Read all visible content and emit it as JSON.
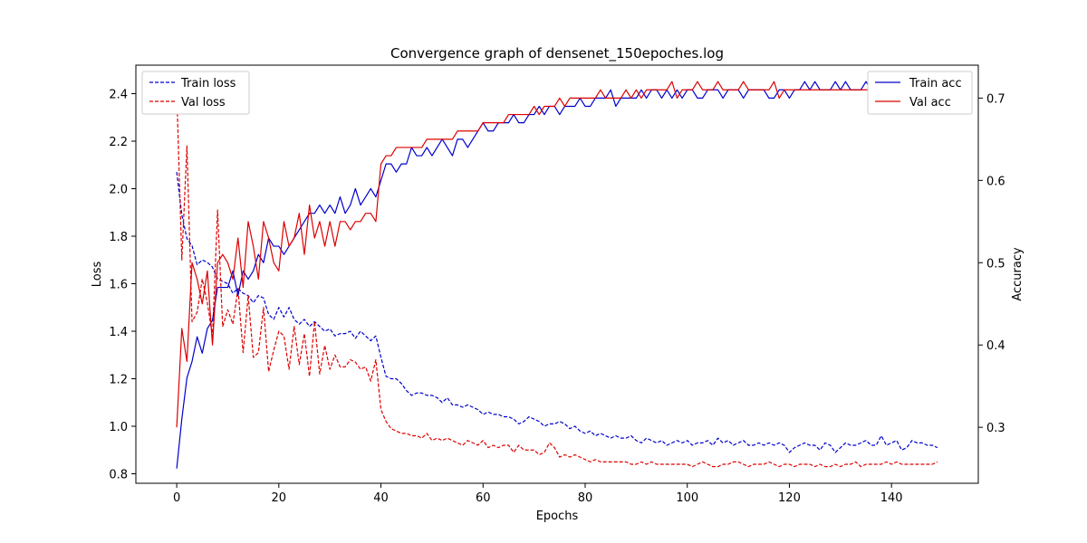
{
  "chart_data": {
    "type": "line",
    "title": "Convergence graph of densenet_150epoches.log",
    "xlabel": "Epochs",
    "ylabel_left": "Loss",
    "ylabel_right": "Accuracy",
    "xlim": [
      -8,
      157
    ],
    "ylim_left": [
      0.76,
      2.52
    ],
    "ylim_right": [
      0.232,
      0.74
    ],
    "xticks": [
      0,
      20,
      40,
      60,
      80,
      100,
      120,
      140
    ],
    "yticks_left": [
      0.8,
      1.0,
      1.2,
      1.4,
      1.6,
      1.8,
      2.0,
      2.2,
      2.4
    ],
    "yticks_right": [
      0.3,
      0.4,
      0.5,
      0.6,
      0.7
    ],
    "legend_left": {
      "placement": "top-left",
      "entries": [
        "Train loss",
        "Val loss"
      ]
    },
    "legend_right": {
      "placement": "top-right",
      "entries": [
        "Train acc",
        "Val acc"
      ]
    },
    "colors": {
      "train": "#0000cc",
      "val": "#dd0000"
    },
    "x": [
      0,
      1,
      2,
      3,
      4,
      5,
      6,
      7,
      8,
      9,
      10,
      11,
      12,
      13,
      14,
      15,
      16,
      17,
      18,
      19,
      20,
      21,
      22,
      23,
      24,
      25,
      26,
      27,
      28,
      29,
      30,
      31,
      32,
      33,
      34,
      35,
      36,
      37,
      38,
      39,
      40,
      41,
      42,
      43,
      44,
      45,
      46,
      47,
      48,
      49,
      50,
      51,
      52,
      53,
      54,
      55,
      56,
      57,
      58,
      59,
      60,
      61,
      62,
      63,
      64,
      65,
      66,
      67,
      68,
      69,
      70,
      71,
      72,
      73,
      74,
      75,
      76,
      77,
      78,
      79,
      80,
      81,
      82,
      83,
      84,
      85,
      86,
      87,
      88,
      89,
      90,
      91,
      92,
      93,
      94,
      95,
      96,
      97,
      98,
      99,
      100,
      101,
      102,
      103,
      104,
      105,
      106,
      107,
      108,
      109,
      110,
      111,
      112,
      113,
      114,
      115,
      116,
      117,
      118,
      119,
      120,
      121,
      122,
      123,
      124,
      125,
      126,
      127,
      128,
      129,
      130,
      131,
      132,
      133,
      134,
      135,
      136,
      137,
      138,
      139,
      140,
      141,
      142,
      143,
      144,
      145,
      146,
      147,
      148,
      149
    ],
    "series": [
      {
        "name": "Train loss",
        "axis": "left",
        "style": "dashed",
        "color": "#0000cc",
        "values": [
          2.07,
          1.89,
          1.79,
          1.76,
          1.68,
          1.7,
          1.69,
          1.67,
          1.62,
          1.61,
          1.6,
          1.56,
          1.58,
          1.56,
          1.55,
          1.52,
          1.55,
          1.54,
          1.47,
          1.45,
          1.5,
          1.46,
          1.5,
          1.45,
          1.43,
          1.45,
          1.42,
          1.44,
          1.42,
          1.4,
          1.41,
          1.38,
          1.39,
          1.39,
          1.4,
          1.37,
          1.4,
          1.38,
          1.36,
          1.38,
          1.29,
          1.21,
          1.2,
          1.2,
          1.18,
          1.15,
          1.13,
          1.14,
          1.14,
          1.13,
          1.13,
          1.12,
          1.1,
          1.12,
          1.09,
          1.09,
          1.08,
          1.09,
          1.08,
          1.07,
          1.05,
          1.06,
          1.05,
          1.05,
          1.04,
          1.04,
          1.03,
          1.01,
          1.02,
          1.04,
          1.03,
          1.02,
          1.0,
          1.01,
          1.01,
          1.02,
          1.01,
          0.99,
          1.0,
          0.98,
          0.97,
          0.98,
          0.96,
          0.97,
          0.96,
          0.95,
          0.96,
          0.95,
          0.95,
          0.96,
          0.94,
          0.93,
          0.95,
          0.94,
          0.93,
          0.94,
          0.92,
          0.93,
          0.94,
          0.93,
          0.94,
          0.92,
          0.93,
          0.93,
          0.94,
          0.92,
          0.95,
          0.93,
          0.94,
          0.92,
          0.93,
          0.94,
          0.92,
          0.92,
          0.93,
          0.92,
          0.93,
          0.92,
          0.93,
          0.92,
          0.89,
          0.91,
          0.92,
          0.93,
          0.92,
          0.92,
          0.9,
          0.93,
          0.92,
          0.89,
          0.91,
          0.93,
          0.92,
          0.92,
          0.93,
          0.94,
          0.92,
          0.92,
          0.96,
          0.92,
          0.93,
          0.94,
          0.9,
          0.91,
          0.94,
          0.93,
          0.93,
          0.92,
          0.92,
          0.91
        ]
      },
      {
        "name": "Val loss",
        "axis": "left",
        "style": "dashed",
        "color": "#dd0000",
        "values": [
          2.41,
          1.7,
          2.18,
          1.44,
          1.48,
          1.62,
          1.52,
          1.38,
          1.91,
          1.42,
          1.49,
          1.43,
          1.58,
          1.31,
          1.55,
          1.29,
          1.31,
          1.5,
          1.23,
          1.32,
          1.4,
          1.38,
          1.24,
          1.42,
          1.26,
          1.39,
          1.21,
          1.44,
          1.22,
          1.34,
          1.24,
          1.3,
          1.25,
          1.25,
          1.28,
          1.27,
          1.24,
          1.25,
          1.19,
          1.28,
          1.07,
          1.02,
          0.99,
          0.98,
          0.97,
          0.97,
          0.96,
          0.96,
          0.95,
          0.97,
          0.94,
          0.95,
          0.94,
          0.95,
          0.94,
          0.93,
          0.92,
          0.94,
          0.93,
          0.92,
          0.94,
          0.91,
          0.92,
          0.91,
          0.92,
          0.92,
          0.89,
          0.92,
          0.9,
          0.9,
          0.9,
          0.88,
          0.89,
          0.93,
          0.91,
          0.87,
          0.88,
          0.87,
          0.88,
          0.87,
          0.86,
          0.85,
          0.86,
          0.85,
          0.85,
          0.85,
          0.85,
          0.85,
          0.85,
          0.84,
          0.84,
          0.85,
          0.84,
          0.85,
          0.84,
          0.84,
          0.84,
          0.84,
          0.84,
          0.84,
          0.84,
          0.83,
          0.84,
          0.85,
          0.84,
          0.83,
          0.83,
          0.84,
          0.84,
          0.85,
          0.85,
          0.84,
          0.83,
          0.84,
          0.84,
          0.84,
          0.85,
          0.84,
          0.83,
          0.84,
          0.84,
          0.83,
          0.84,
          0.84,
          0.84,
          0.83,
          0.84,
          0.83,
          0.83,
          0.84,
          0.83,
          0.84,
          0.84,
          0.85,
          0.83,
          0.84,
          0.84,
          0.84,
          0.84,
          0.85,
          0.84,
          0.85,
          0.84,
          0.84,
          0.84,
          0.84,
          0.84,
          0.84,
          0.84,
          0.85
        ]
      },
      {
        "name": "Train acc",
        "axis": "right",
        "style": "solid",
        "color": "#0000cc",
        "values": [
          0.25,
          0.31,
          0.36,
          0.38,
          0.41,
          0.39,
          0.42,
          0.43,
          0.47,
          0.47,
          0.47,
          0.49,
          0.46,
          0.49,
          0.48,
          0.49,
          0.51,
          0.5,
          0.53,
          0.52,
          0.52,
          0.51,
          0.52,
          0.53,
          0.54,
          0.55,
          0.56,
          0.56,
          0.57,
          0.56,
          0.57,
          0.56,
          0.58,
          0.56,
          0.57,
          0.59,
          0.57,
          0.58,
          0.59,
          0.58,
          0.6,
          0.62,
          0.62,
          0.61,
          0.62,
          0.62,
          0.64,
          0.63,
          0.63,
          0.64,
          0.63,
          0.64,
          0.65,
          0.64,
          0.63,
          0.65,
          0.65,
          0.64,
          0.65,
          0.66,
          0.67,
          0.66,
          0.66,
          0.67,
          0.67,
          0.67,
          0.68,
          0.67,
          0.67,
          0.68,
          0.68,
          0.69,
          0.68,
          0.69,
          0.69,
          0.68,
          0.69,
          0.69,
          0.69,
          0.7,
          0.69,
          0.69,
          0.7,
          0.7,
          0.7,
          0.71,
          0.69,
          0.7,
          0.7,
          0.7,
          0.7,
          0.71,
          0.7,
          0.71,
          0.71,
          0.7,
          0.71,
          0.7,
          0.71,
          0.7,
          0.71,
          0.71,
          0.7,
          0.7,
          0.71,
          0.71,
          0.71,
          0.7,
          0.71,
          0.71,
          0.71,
          0.7,
          0.71,
          0.71,
          0.71,
          0.71,
          0.7,
          0.7,
          0.71,
          0.71,
          0.7,
          0.71,
          0.71,
          0.72,
          0.71,
          0.72,
          0.71,
          0.71,
          0.71,
          0.72,
          0.71,
          0.72,
          0.71,
          0.71,
          0.71,
          0.72,
          0.71,
          0.72,
          0.7,
          0.71,
          0.71,
          0.71,
          0.71,
          0.71,
          0.71,
          0.71,
          0.71,
          0.72,
          0.71,
          0.71
        ]
      },
      {
        "name": "Val acc",
        "axis": "right",
        "style": "solid",
        "color": "#dd0000",
        "values": [
          0.3,
          0.42,
          0.38,
          0.5,
          0.48,
          0.45,
          0.49,
          0.4,
          0.5,
          0.51,
          0.5,
          0.48,
          0.53,
          0.47,
          0.55,
          0.52,
          0.48,
          0.55,
          0.53,
          0.5,
          0.49,
          0.55,
          0.52,
          0.53,
          0.56,
          0.51,
          0.57,
          0.53,
          0.55,
          0.52,
          0.55,
          0.52,
          0.55,
          0.55,
          0.54,
          0.55,
          0.55,
          0.56,
          0.56,
          0.55,
          0.62,
          0.63,
          0.63,
          0.64,
          0.64,
          0.64,
          0.64,
          0.64,
          0.64,
          0.65,
          0.65,
          0.65,
          0.65,
          0.65,
          0.65,
          0.66,
          0.66,
          0.66,
          0.66,
          0.66,
          0.67,
          0.67,
          0.67,
          0.67,
          0.67,
          0.68,
          0.68,
          0.68,
          0.68,
          0.68,
          0.69,
          0.68,
          0.69,
          0.69,
          0.69,
          0.7,
          0.69,
          0.7,
          0.7,
          0.7,
          0.7,
          0.7,
          0.7,
          0.71,
          0.7,
          0.7,
          0.7,
          0.7,
          0.71,
          0.7,
          0.71,
          0.7,
          0.71,
          0.71,
          0.71,
          0.71,
          0.71,
          0.72,
          0.7,
          0.71,
          0.71,
          0.71,
          0.72,
          0.71,
          0.71,
          0.71,
          0.72,
          0.71,
          0.71,
          0.71,
          0.71,
          0.72,
          0.71,
          0.71,
          0.71,
          0.71,
          0.71,
          0.72,
          0.7,
          0.71,
          0.71,
          0.71,
          0.71,
          0.71,
          0.71,
          0.71,
          0.71,
          0.71,
          0.71,
          0.71,
          0.71,
          0.71,
          0.71,
          0.71,
          0.71,
          0.71,
          0.71,
          0.71,
          0.71,
          0.71,
          0.71,
          0.71,
          0.71,
          0.71,
          0.71,
          0.71,
          0.71,
          0.71,
          0.71,
          0.71
        ]
      }
    ]
  }
}
